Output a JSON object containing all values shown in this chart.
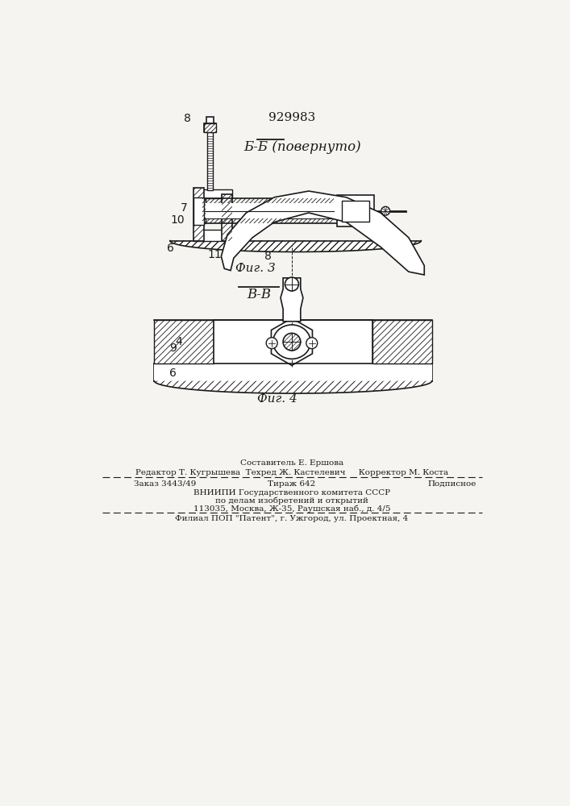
{
  "patent_number": "929983",
  "fig3_title": "Б-Б (повернуто)",
  "fig3_label": "Фиг. 3",
  "fig4_title": "В-В",
  "fig4_label": "Фиг. 4",
  "bg_color": "#f5f4f0",
  "line_color": "#1a1a1a",
  "footer_lines": [
    "Составитель Е. Ершова",
    "Редактор Т. Кугрышева  Техред Ж. Кастелевич     Корректор М. Коста",
    "Заказ 3443/49          Тираж 642                Подписное",
    "ВНИИПИ Государственного комитета СССР",
    "по делам изобретений и открытий",
    "113035, Москва, Ж-35, Раушская наб., д. 4/5",
    "Филиал ПОП \"Патент\", г. Ужгород, ул. Проектная, 4"
  ]
}
